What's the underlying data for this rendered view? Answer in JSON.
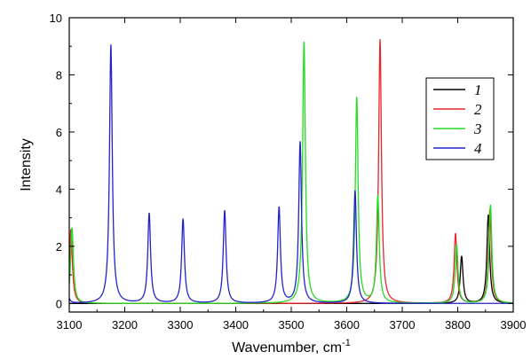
{
  "chart_data": {
    "type": "line",
    "xlabel": "Wavenumber, cm",
    "xlabel_superscript": "-1",
    "ylabel": "Intensity",
    "xlim": [
      3100,
      3900
    ],
    "ylim": [
      -0.3,
      10
    ],
    "xticks": [
      3100,
      3200,
      3300,
      3400,
      3500,
      3600,
      3700,
      3800,
      3900
    ],
    "yticks": [
      0,
      2,
      4,
      6,
      8,
      10
    ],
    "grid": false,
    "legend_position": "top-right",
    "peak_width_hwhm": 3,
    "series": [
      {
        "name": "1",
        "color": "#000000",
        "peaks": [
          [
            3807,
            1.65
          ],
          [
            3855,
            3.1
          ]
        ]
      },
      {
        "name": "2",
        "color": "#e8262a",
        "peaks": [
          [
            3103,
            2.6
          ],
          [
            3660,
            9.25
          ],
          [
            3796,
            2.45
          ],
          [
            3858,
            3.3
          ]
        ]
      },
      {
        "name": "3",
        "color": "#22dd22",
        "peaks": [
          [
            3105,
            2.65
          ],
          [
            3523,
            9.15
          ],
          [
            3618,
            7.2
          ],
          [
            3656,
            3.75
          ],
          [
            3798,
            2.05
          ],
          [
            3859,
            3.45
          ]
        ]
      },
      {
        "name": "4",
        "color": "#2222cc",
        "peaks": [
          [
            3097,
            0.35
          ],
          [
            3175,
            9.05
          ],
          [
            3244,
            3.15
          ],
          [
            3305,
            2.95
          ],
          [
            3380,
            3.25
          ],
          [
            3478,
            3.35
          ],
          [
            3516,
            5.65
          ],
          [
            3615,
            3.95
          ]
        ]
      }
    ]
  }
}
